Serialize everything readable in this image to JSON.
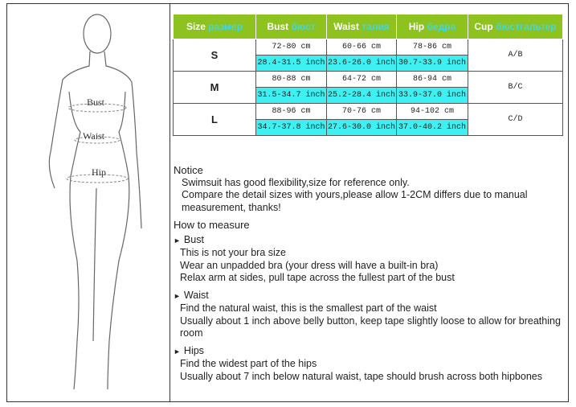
{
  "table": {
    "headers": [
      {
        "en": "Size",
        "ru": "размер"
      },
      {
        "en": "Bust",
        "ru": "бюст"
      },
      {
        "en": "Waist",
        "ru": "талия"
      },
      {
        "en": "Hip",
        "ru": "бедра"
      },
      {
        "en": "Cup",
        "ru": "бюстгальтер"
      }
    ],
    "rows": [
      {
        "size": "S",
        "bust_cm": "72-80 cm",
        "bust_in": "28.4-31.5 inch",
        "waist_cm": "60-66 cm",
        "waist_in": "23.6-26.0 inch",
        "hip_cm": "78-86 cm",
        "hip_in": "30.7-33.9 inch",
        "cup": "A/B"
      },
      {
        "size": "M",
        "bust_cm": "80-88 cm",
        "bust_in": "31.5-34.7 inch",
        "waist_cm": "64-72 cm",
        "waist_in": "25.2-28.4 inch",
        "hip_cm": "86-94 cm",
        "hip_in": "33.9-37.0 inch",
        "cup": "B/C"
      },
      {
        "size": "L",
        "bust_cm": "88-96 cm",
        "bust_in": "34.7-37.8 inch",
        "waist_cm": "70-76 cm",
        "waist_in": "27.6-30.0 inch",
        "hip_cm": "94-102 cm",
        "hip_in": "37.0-40.2 inch",
        "cup": "C/D"
      }
    ],
    "colors": {
      "header": "#8dc21f",
      "inch_cells": "#3ff0f2"
    }
  },
  "figure": {
    "labels": {
      "bust": "Bust",
      "waist": "Waist",
      "hip": "Hip"
    }
  },
  "notice": {
    "title": "Notice",
    "lines": [
      "Swimsuit has good flexibility,size for reference only.",
      "Compare the detail sizes with yours,please allow 1-2CM differs due to manual",
      "measurement, thanks!"
    ]
  },
  "how_to": {
    "title": "How to measure",
    "sections": [
      {
        "title": "Bust",
        "lines": [
          "This is not your bra size",
          "Wear an unpadded bra (your dress will have a built-in bra)",
          "Relax arm at sides, pull tape across the fullest part of the bust"
        ]
      },
      {
        "title": "Waist",
        "lines": [
          "Find the natural waist, this is the smallest part of the waist",
          "Usually about 1 inch above belly button, keep tape slightly loose to allow for breathing room"
        ]
      },
      {
        "title": "Hips",
        "lines": [
          "Find the widest part of the hips",
          "Usually about 7 inch below natural waist, tape should brush across both hipbones"
        ]
      }
    ]
  }
}
